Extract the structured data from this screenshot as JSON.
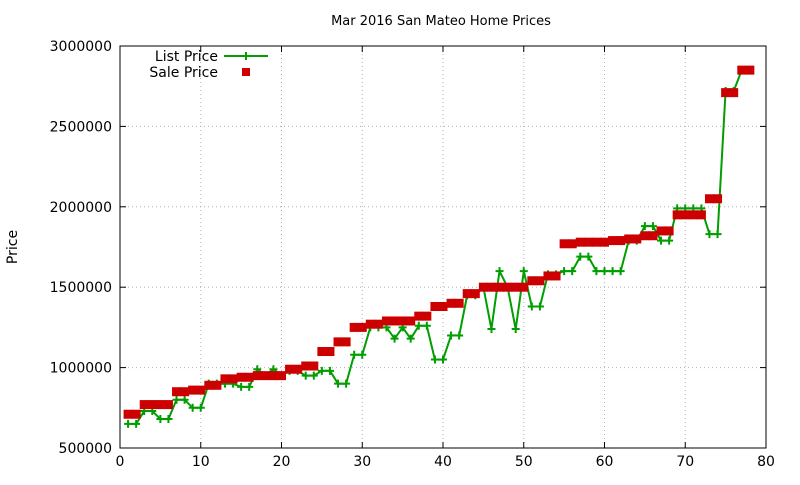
{
  "chart_data": {
    "type": "line",
    "title": "Mar 2016 San Mateo Home Prices",
    "xlabel": "",
    "ylabel": "Price",
    "xlim": [
      0,
      80
    ],
    "ylim": [
      500000,
      3000000
    ],
    "x_ticks": [
      0,
      10,
      20,
      30,
      40,
      50,
      60,
      70,
      80
    ],
    "y_ticks": [
      500000,
      1000000,
      1500000,
      2000000,
      2500000,
      3000000
    ],
    "grid": true,
    "grid_style": "dotted",
    "legend_position": "top-left",
    "series": [
      {
        "name": "List Price",
        "style": "line-plus",
        "color": "#009e00",
        "points": [
          [
            1,
            650000
          ],
          [
            2,
            650000
          ],
          [
            3,
            730000
          ],
          [
            4,
            730000
          ],
          [
            5,
            680000
          ],
          [
            6,
            680000
          ],
          [
            7,
            800000
          ],
          [
            8,
            800000
          ],
          [
            9,
            750000
          ],
          [
            10,
            750000
          ],
          [
            11,
            900000
          ],
          [
            12,
            900000
          ],
          [
            13,
            900000
          ],
          [
            14,
            900000
          ],
          [
            15,
            880000
          ],
          [
            16,
            880000
          ],
          [
            17,
            990000
          ],
          [
            18,
            950000
          ],
          [
            19,
            990000
          ],
          [
            20,
            950000
          ],
          [
            21,
            980000
          ],
          [
            22,
            980000
          ],
          [
            23,
            950000
          ],
          [
            24,
            950000
          ],
          [
            25,
            980000
          ],
          [
            26,
            980000
          ],
          [
            27,
            900000
          ],
          [
            28,
            900000
          ],
          [
            29,
            1080000
          ],
          [
            30,
            1080000
          ],
          [
            31,
            1250000
          ],
          [
            32,
            1250000
          ],
          [
            33,
            1250000
          ],
          [
            34,
            1180000
          ],
          [
            35,
            1250000
          ],
          [
            36,
            1180000
          ],
          [
            37,
            1260000
          ],
          [
            38,
            1260000
          ],
          [
            39,
            1050000
          ],
          [
            40,
            1050000
          ],
          [
            41,
            1200000
          ],
          [
            42,
            1200000
          ],
          [
            43,
            1450000
          ],
          [
            44,
            1450000
          ],
          [
            45,
            1500000
          ],
          [
            46,
            1240000
          ],
          [
            47,
            1600000
          ],
          [
            48,
            1500000
          ],
          [
            49,
            1240000
          ],
          [
            50,
            1600000
          ],
          [
            51,
            1380000
          ],
          [
            52,
            1380000
          ],
          [
            53,
            1580000
          ],
          [
            54,
            1580000
          ],
          [
            55,
            1600000
          ],
          [
            56,
            1600000
          ],
          [
            57,
            1690000
          ],
          [
            58,
            1690000
          ],
          [
            59,
            1600000
          ],
          [
            60,
            1600000
          ],
          [
            61,
            1600000
          ],
          [
            62,
            1600000
          ],
          [
            63,
            1790000
          ],
          [
            64,
            1790000
          ],
          [
            65,
            1880000
          ],
          [
            66,
            1880000
          ],
          [
            67,
            1790000
          ],
          [
            68,
            1790000
          ],
          [
            69,
            1990000
          ],
          [
            70,
            1990000
          ],
          [
            71,
            1990000
          ],
          [
            72,
            1990000
          ],
          [
            73,
            1830000
          ],
          [
            74,
            1830000
          ],
          [
            75,
            2720000
          ],
          [
            76,
            2720000
          ],
          [
            77,
            2850000
          ],
          [
            78,
            2850000
          ]
        ]
      },
      {
        "name": "Sale Price",
        "style": "square",
        "color": "#cc0000",
        "points": [
          [
            1,
            710000
          ],
          [
            2,
            710000
          ],
          [
            3,
            770000
          ],
          [
            4,
            770000
          ],
          [
            5,
            770000
          ],
          [
            6,
            770000
          ],
          [
            7,
            850000
          ],
          [
            8,
            850000
          ],
          [
            9,
            860000
          ],
          [
            10,
            860000
          ],
          [
            11,
            890000
          ],
          [
            12,
            890000
          ],
          [
            13,
            930000
          ],
          [
            14,
            930000
          ],
          [
            15,
            940000
          ],
          [
            16,
            940000
          ],
          [
            17,
            950000
          ],
          [
            18,
            950000
          ],
          [
            19,
            950000
          ],
          [
            20,
            950000
          ],
          [
            21,
            990000
          ],
          [
            22,
            990000
          ],
          [
            23,
            1010000
          ],
          [
            24,
            1010000
          ],
          [
            25,
            1100000
          ],
          [
            26,
            1100000
          ],
          [
            27,
            1160000
          ],
          [
            28,
            1160000
          ],
          [
            29,
            1250000
          ],
          [
            30,
            1250000
          ],
          [
            31,
            1270000
          ],
          [
            32,
            1270000
          ],
          [
            33,
            1290000
          ],
          [
            34,
            1290000
          ],
          [
            35,
            1290000
          ],
          [
            36,
            1290000
          ],
          [
            37,
            1320000
          ],
          [
            38,
            1320000
          ],
          [
            39,
            1380000
          ],
          [
            40,
            1380000
          ],
          [
            41,
            1400000
          ],
          [
            42,
            1400000
          ],
          [
            43,
            1460000
          ],
          [
            44,
            1460000
          ],
          [
            45,
            1500000
          ],
          [
            46,
            1500000
          ],
          [
            47,
            1500000
          ],
          [
            48,
            1500000
          ],
          [
            49,
            1500000
          ],
          [
            50,
            1500000
          ],
          [
            51,
            1540000
          ],
          [
            52,
            1540000
          ],
          [
            53,
            1570000
          ],
          [
            54,
            1570000
          ],
          [
            55,
            1770000
          ],
          [
            56,
            1770000
          ],
          [
            57,
            1780000
          ],
          [
            58,
            1780000
          ],
          [
            59,
            1780000
          ],
          [
            60,
            1780000
          ],
          [
            61,
            1790000
          ],
          [
            62,
            1790000
          ],
          [
            63,
            1800000
          ],
          [
            64,
            1800000
          ],
          [
            65,
            1820000
          ],
          [
            66,
            1820000
          ],
          [
            67,
            1850000
          ],
          [
            68,
            1850000
          ],
          [
            69,
            1950000
          ],
          [
            70,
            1950000
          ],
          [
            71,
            1950000
          ],
          [
            72,
            1950000
          ],
          [
            73,
            2050000
          ],
          [
            74,
            2050000
          ],
          [
            75,
            2710000
          ],
          [
            76,
            2710000
          ],
          [
            77,
            2850000
          ],
          [
            78,
            2850000
          ]
        ]
      }
    ]
  }
}
